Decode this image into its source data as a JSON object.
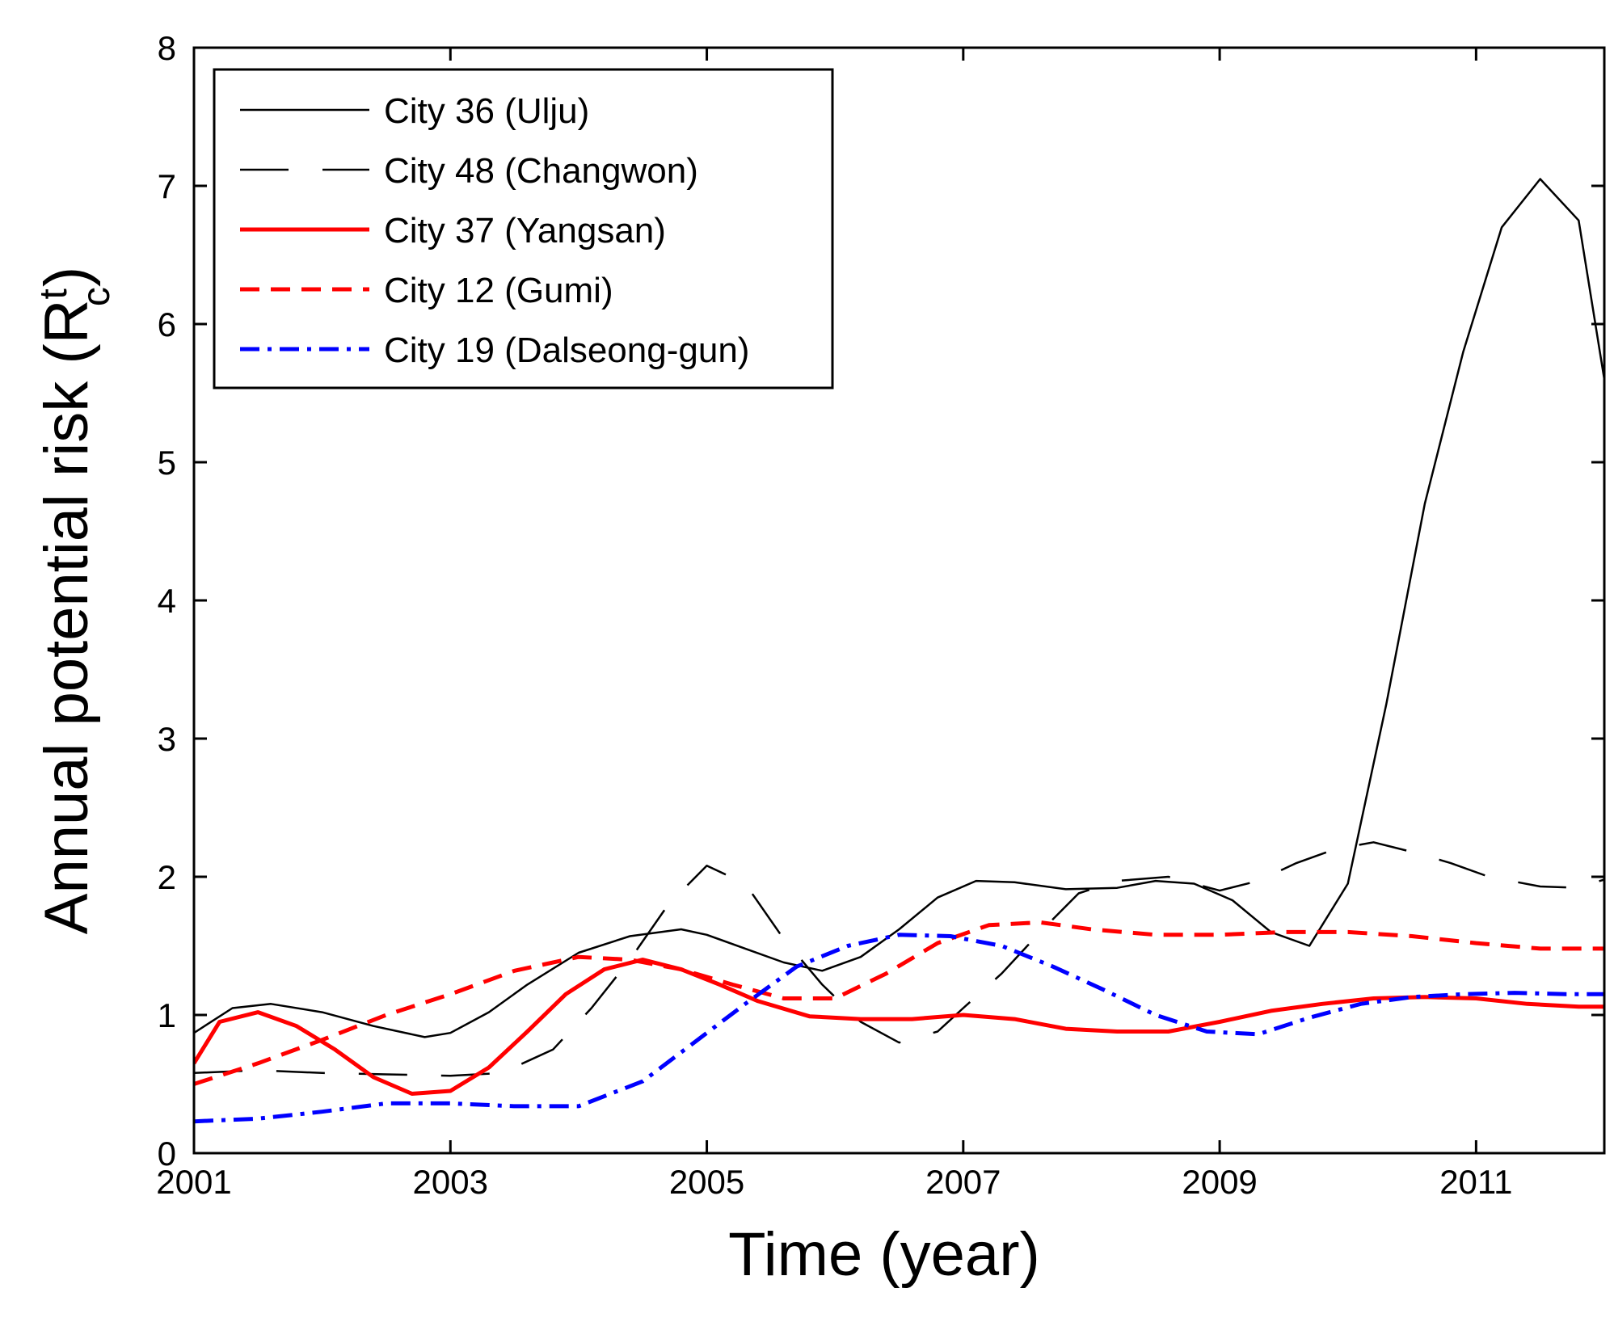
{
  "chart_data": {
    "type": "line",
    "title": "",
    "xlabel": "Time (year)",
    "ylabel": {
      "main": "Annual potential risk (R",
      "sup": "t",
      "sub": "c",
      "close": ")"
    },
    "xlim": [
      2001,
      2012
    ],
    "ylim": [
      0,
      8
    ],
    "xticks": [
      2001,
      2003,
      2005,
      2007,
      2009,
      2011
    ],
    "xtick_labels": [
      "2001",
      "2003",
      "2005",
      "2007",
      "2009",
      "2011"
    ],
    "yticks": [
      0,
      1,
      2,
      3,
      4,
      5,
      6,
      7,
      8
    ],
    "ytick_labels": [
      "0",
      "1",
      "2",
      "3",
      "4",
      "5",
      "6",
      "7",
      "8"
    ],
    "grid": false,
    "legend_position": "top-left",
    "series": [
      {
        "name": "City 36 (Ulju)",
        "color": "#000000",
        "style": "solid",
        "width": 2.5,
        "x": [
          2001,
          2001.3,
          2001.6,
          2002,
          2002.4,
          2002.8,
          2003,
          2003.3,
          2003.6,
          2004,
          2004.4,
          2004.8,
          2005,
          2005.3,
          2005.6,
          2005.9,
          2006.2,
          2006.5,
          2006.8,
          2007.1,
          2007.4,
          2007.8,
          2008.2,
          2008.5,
          2008.8,
          2009.1,
          2009.4,
          2009.7,
          2010,
          2010.3,
          2010.6,
          2010.9,
          2011.2,
          2011.5,
          2011.8,
          2012
        ],
        "y": [
          0.87,
          1.05,
          1.08,
          1.02,
          0.92,
          0.84,
          0.87,
          1.02,
          1.22,
          1.45,
          1.57,
          1.62,
          1.58,
          1.48,
          1.38,
          1.32,
          1.42,
          1.62,
          1.85,
          1.97,
          1.96,
          1.91,
          1.92,
          1.97,
          1.95,
          1.83,
          1.6,
          1.5,
          1.95,
          3.25,
          4.7,
          5.8,
          6.7,
          7.05,
          6.75,
          5.6
        ]
      },
      {
        "name": "City 48 (Changwon)",
        "color": "#000000",
        "style": "longdash",
        "width": 2.5,
        "x": [
          2001,
          2001.5,
          2002,
          2002.5,
          2003,
          2003.4,
          2003.8,
          2004.1,
          2004.4,
          2004.7,
          2005,
          2005.3,
          2005.6,
          2005.9,
          2006.2,
          2006.5,
          2006.8,
          2007,
          2007.3,
          2007.6,
          2007.9,
          2008.2,
          2008.6,
          2009,
          2009.3,
          2009.6,
          2009.9,
          2010.2,
          2010.5,
          2010.8,
          2011.1,
          2011.5,
          2011.8,
          2012
        ],
        "y": [
          0.58,
          0.6,
          0.58,
          0.57,
          0.56,
          0.58,
          0.75,
          1.05,
          1.4,
          1.8,
          2.08,
          1.95,
          1.55,
          1.22,
          0.95,
          0.8,
          0.88,
          1.05,
          1.3,
          1.6,
          1.88,
          1.97,
          2.0,
          1.9,
          1.97,
          2.1,
          2.2,
          2.25,
          2.18,
          2.1,
          2.0,
          1.93,
          1.92,
          1.98
        ]
      },
      {
        "name": "City 37 (Yangsan)",
        "color": "#ff0000",
        "style": "solid",
        "width": 5,
        "x": [
          2001,
          2001.2,
          2001.5,
          2001.8,
          2002.1,
          2002.4,
          2002.7,
          2003,
          2003.3,
          2003.6,
          2003.9,
          2004.2,
          2004.5,
          2004.8,
          2005.1,
          2005.4,
          2005.8,
          2006.2,
          2006.6,
          2007,
          2007.4,
          2007.8,
          2008.2,
          2008.6,
          2009,
          2009.4,
          2009.8,
          2010.2,
          2010.6,
          2011,
          2011.4,
          2011.8,
          2012
        ],
        "y": [
          0.65,
          0.95,
          1.02,
          0.92,
          0.75,
          0.55,
          0.43,
          0.45,
          0.62,
          0.88,
          1.15,
          1.33,
          1.4,
          1.33,
          1.22,
          1.1,
          0.99,
          0.97,
          0.97,
          1.0,
          0.97,
          0.9,
          0.88,
          0.88,
          0.95,
          1.03,
          1.08,
          1.12,
          1.13,
          1.12,
          1.08,
          1.06,
          1.06
        ]
      },
      {
        "name": "City 12 (Gumi)",
        "color": "#ff0000",
        "style": "dashed",
        "width": 5,
        "x": [
          2001,
          2001.5,
          2002,
          2002.5,
          2003,
          2003.5,
          2004,
          2004.4,
          2004.8,
          2005.2,
          2005.6,
          2006,
          2006.4,
          2006.8,
          2007.2,
          2007.6,
          2008,
          2008.5,
          2009,
          2009.5,
          2010,
          2010.5,
          2011,
          2011.5,
          2012
        ],
        "y": [
          0.5,
          0.65,
          0.82,
          1.0,
          1.15,
          1.32,
          1.42,
          1.4,
          1.33,
          1.22,
          1.12,
          1.12,
          1.3,
          1.52,
          1.65,
          1.67,
          1.62,
          1.58,
          1.58,
          1.6,
          1.6,
          1.57,
          1.52,
          1.48,
          1.48
        ]
      },
      {
        "name": "City 19 (Dalseong-gun)",
        "color": "#0000ff",
        "style": "dashdot",
        "width": 5,
        "x": [
          2001,
          2001.5,
          2002,
          2002.5,
          2003,
          2003.5,
          2004,
          2004.5,
          2004.9,
          2005.3,
          2005.7,
          2006.1,
          2006.5,
          2006.9,
          2007.3,
          2007.7,
          2008.1,
          2008.5,
          2008.9,
          2009.3,
          2009.7,
          2010.1,
          2010.5,
          2010.9,
          2011.3,
          2011.7,
          2012
        ],
        "y": [
          0.23,
          0.25,
          0.3,
          0.36,
          0.36,
          0.34,
          0.34,
          0.52,
          0.8,
          1.08,
          1.35,
          1.5,
          1.58,
          1.57,
          1.5,
          1.35,
          1.18,
          1.0,
          0.88,
          0.86,
          0.98,
          1.08,
          1.13,
          1.15,
          1.16,
          1.15,
          1.15
        ]
      }
    ]
  }
}
